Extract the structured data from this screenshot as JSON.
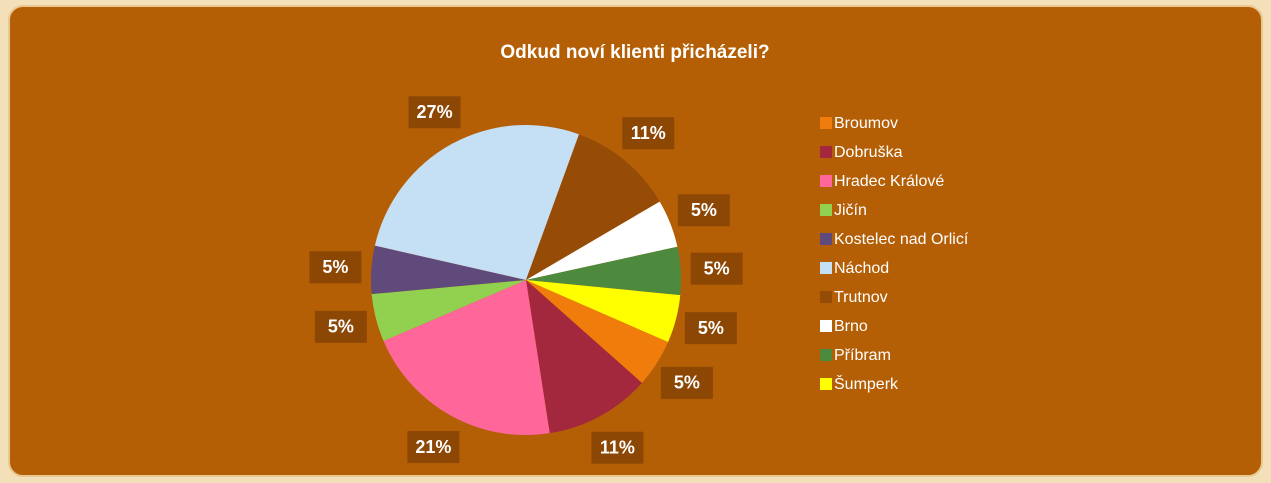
{
  "chart_data": {
    "type": "pie",
    "title": "Odkud noví klienti přicházeli?",
    "categories": [
      "Broumov",
      "Dobruška",
      "Hradec Králové",
      "Jičín",
      "Kostelec nad Orlicí",
      "Náchod",
      "Trutnov",
      "Brno",
      "Příbram",
      "Šumperk"
    ],
    "values": [
      5,
      11,
      21,
      5,
      5,
      27,
      11,
      5,
      5,
      5
    ],
    "value_labels": [
      "5%",
      "11%",
      "21%",
      "5%",
      "5%",
      "27%",
      "11%",
      "5%",
      "5%",
      "5%"
    ],
    "colors": [
      "#f07c0c",
      "#a3283d",
      "#ff6699",
      "#92d050",
      "#604a7b",
      "#c5e0f4",
      "#964b06",
      "#ffffff",
      "#4e8a3e",
      "#ffff00"
    ],
    "legend": "right"
  }
}
